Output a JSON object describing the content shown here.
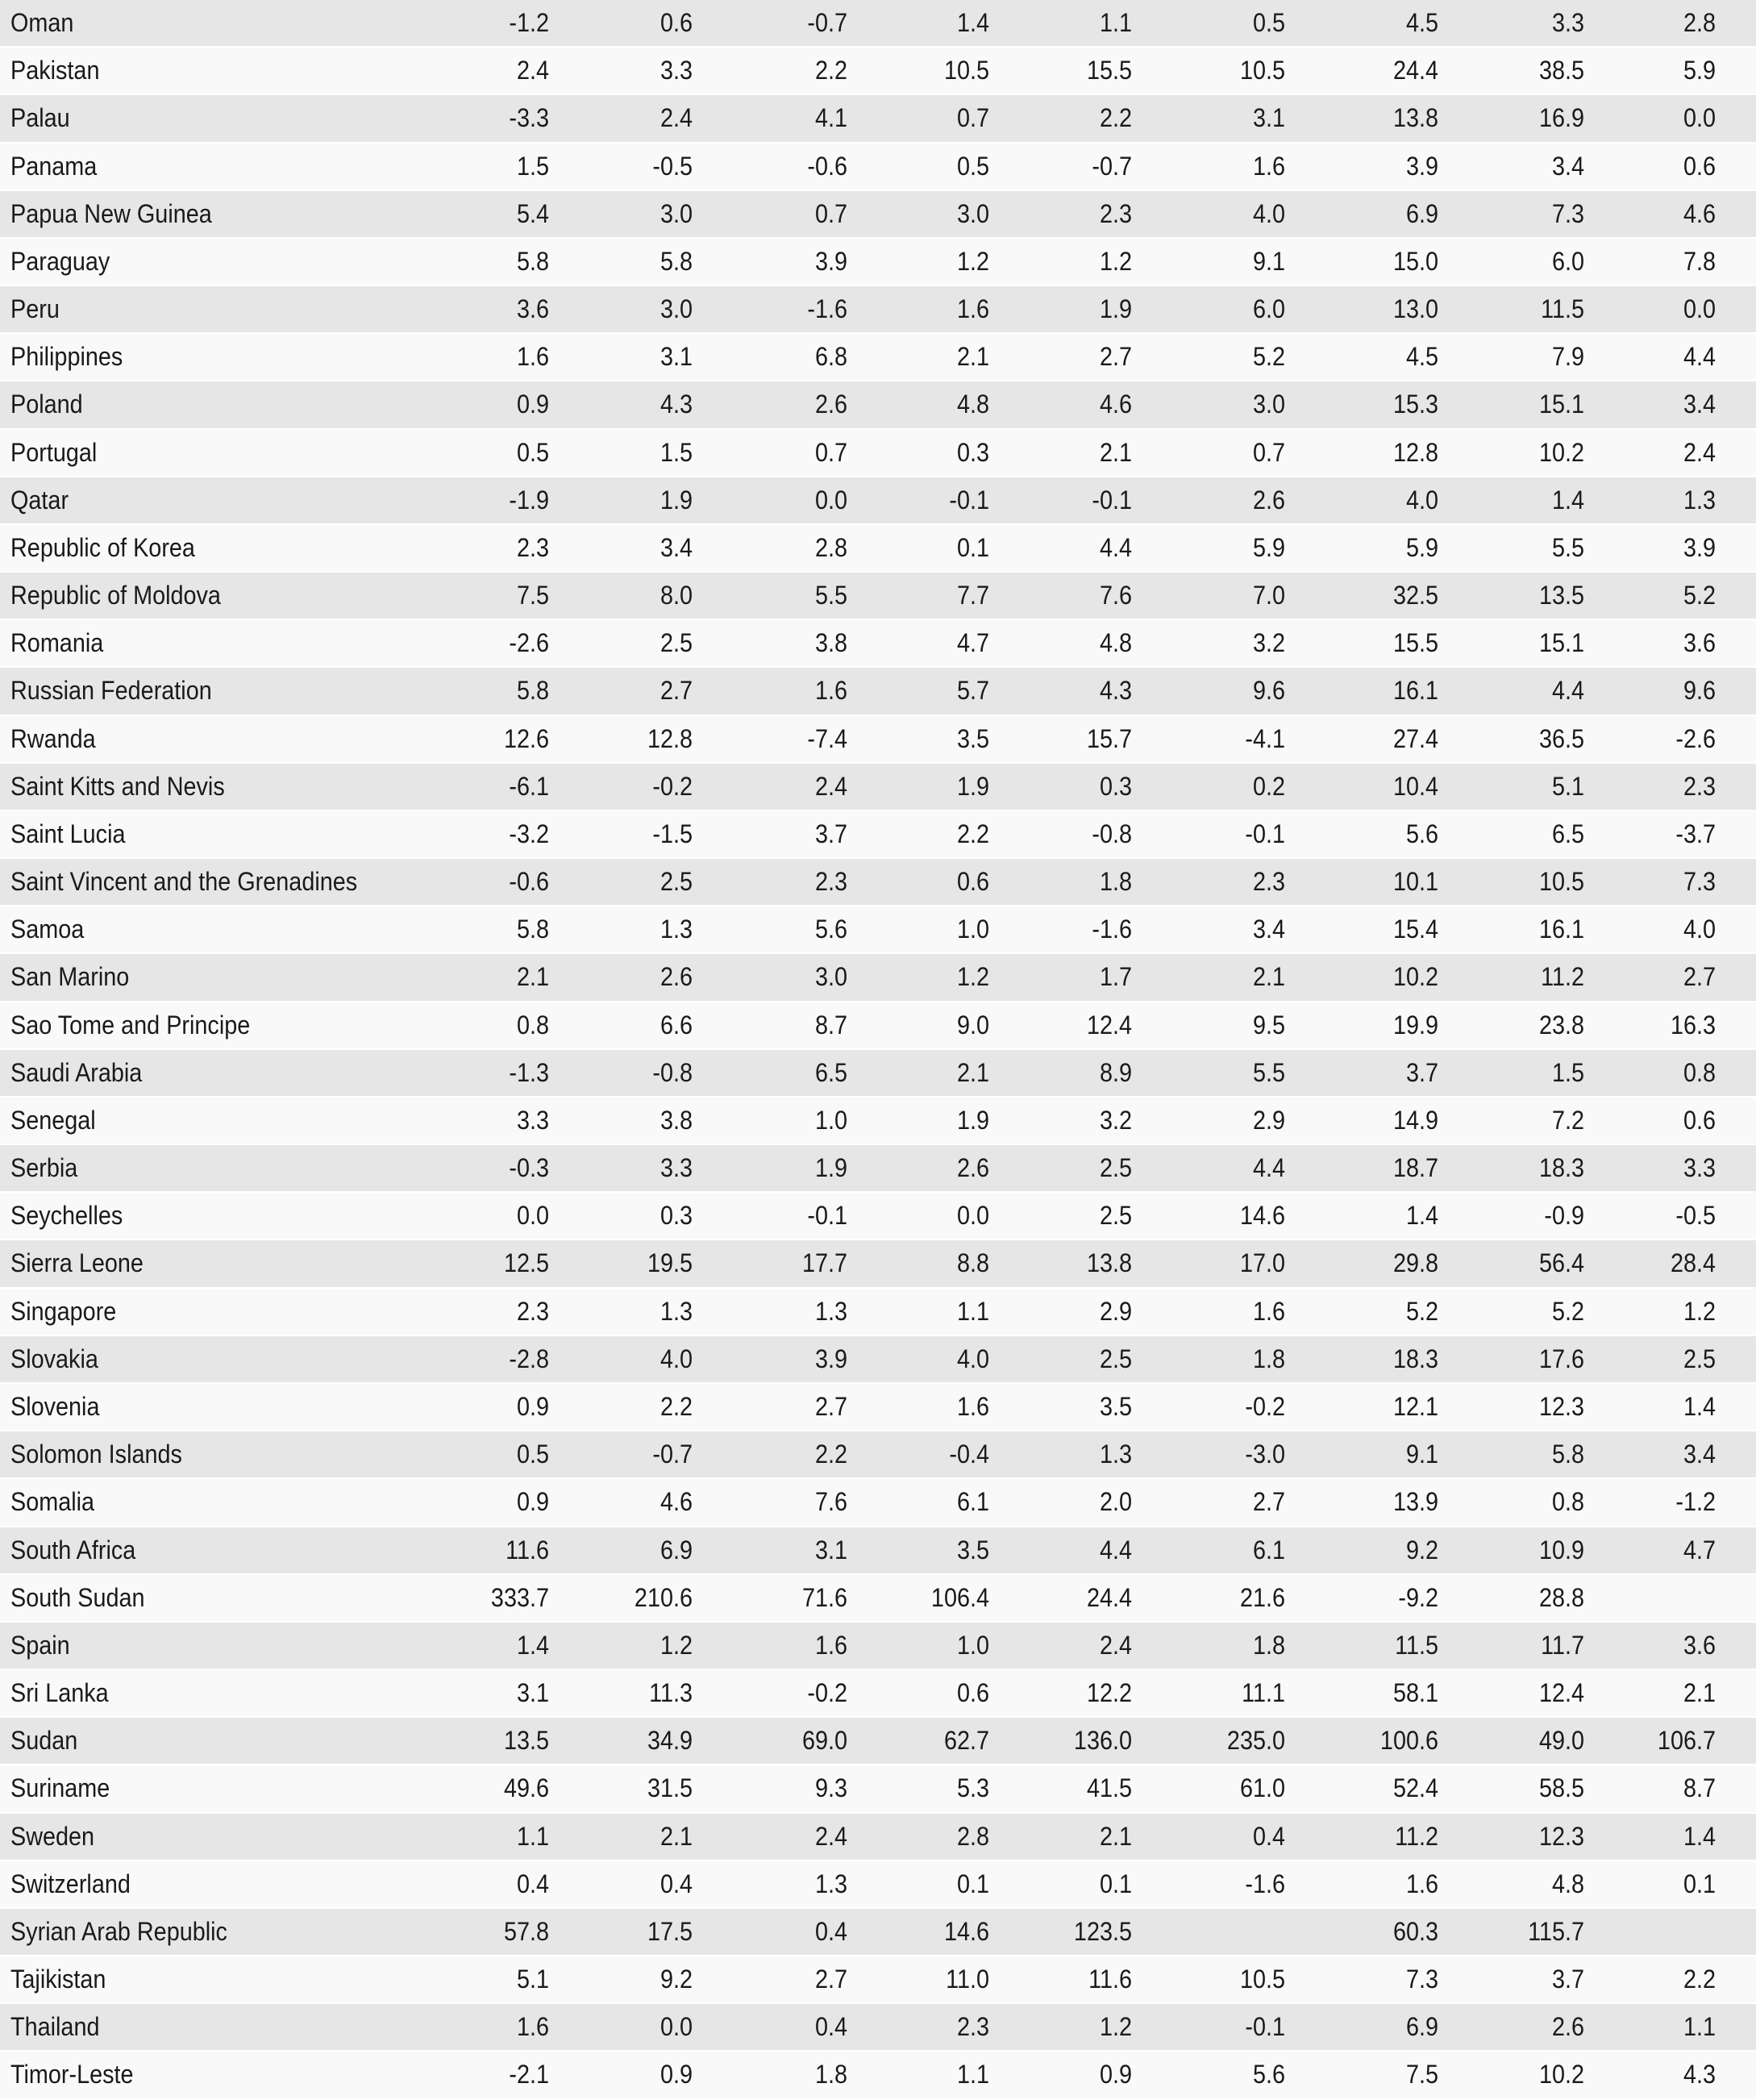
{
  "rows": [
    {
      "country": "Oman",
      "values": [
        "-1.2",
        "0.6",
        "-0.7",
        "1.4",
        "1.1",
        "0.5",
        "4.5",
        "3.3",
        "2.8"
      ]
    },
    {
      "country": "Pakistan",
      "values": [
        "2.4",
        "3.3",
        "2.2",
        "10.5",
        "15.5",
        "10.5",
        "24.4",
        "38.5",
        "5.9"
      ]
    },
    {
      "country": "Palau",
      "values": [
        "-3.3",
        "2.4",
        "4.1",
        "0.7",
        "2.2",
        "3.1",
        "13.8",
        "16.9",
        "0.0"
      ]
    },
    {
      "country": "Panama",
      "values": [
        "1.5",
        "-0.5",
        "-0.6",
        "0.5",
        "-0.7",
        "1.6",
        "3.9",
        "3.4",
        "0.6"
      ]
    },
    {
      "country": "Papua New Guinea",
      "values": [
        "5.4",
        "3.0",
        "0.7",
        "3.0",
        "2.3",
        "4.0",
        "6.9",
        "7.3",
        "4.6"
      ]
    },
    {
      "country": "Paraguay",
      "values": [
        "5.8",
        "5.8",
        "3.9",
        "1.2",
        "1.2",
        "9.1",
        "15.0",
        "6.0",
        "7.8"
      ]
    },
    {
      "country": "Peru",
      "values": [
        "3.6",
        "3.0",
        "-1.6",
        "1.6",
        "1.9",
        "6.0",
        "13.0",
        "11.5",
        "0.0"
      ]
    },
    {
      "country": "Philippines",
      "values": [
        "1.6",
        "3.1",
        "6.8",
        "2.1",
        "2.7",
        "5.2",
        "4.5",
        "7.9",
        "4.4"
      ]
    },
    {
      "country": "Poland",
      "values": [
        "0.9",
        "4.3",
        "2.6",
        "4.8",
        "4.6",
        "3.0",
        "15.3",
        "15.1",
        "3.4"
      ]
    },
    {
      "country": "Portugal",
      "values": [
        "0.5",
        "1.5",
        "0.7",
        "0.3",
        "2.1",
        "0.7",
        "12.8",
        "10.2",
        "2.4"
      ]
    },
    {
      "country": "Qatar",
      "values": [
        "-1.9",
        "1.9",
        "0.0",
        "-0.1",
        "-0.1",
        "2.6",
        "4.0",
        "1.4",
        "1.3"
      ]
    },
    {
      "country": "Republic of Korea",
      "values": [
        "2.3",
        "3.4",
        "2.8",
        "0.1",
        "4.4",
        "5.9",
        "5.9",
        "5.5",
        "3.9"
      ]
    },
    {
      "country": "Republic of Moldova",
      "values": [
        "7.5",
        "8.0",
        "5.5",
        "7.7",
        "7.6",
        "7.0",
        "32.5",
        "13.5",
        "5.2"
      ]
    },
    {
      "country": "Romania",
      "values": [
        "-2.6",
        "2.5",
        "3.8",
        "4.7",
        "4.8",
        "3.2",
        "15.5",
        "15.1",
        "3.6"
      ]
    },
    {
      "country": "Russian Federation",
      "values": [
        "5.8",
        "2.7",
        "1.6",
        "5.7",
        "4.3",
        "9.6",
        "16.1",
        "4.4",
        "9.6"
      ]
    },
    {
      "country": "Rwanda",
      "values": [
        "12.6",
        "12.8",
        "-7.4",
        "3.5",
        "15.7",
        "-4.1",
        "27.4",
        "36.5",
        "-2.6"
      ]
    },
    {
      "country": "Saint Kitts and Nevis",
      "values": [
        "-6.1",
        "-0.2",
        "2.4",
        "1.9",
        "0.3",
        "0.2",
        "10.4",
        "5.1",
        "2.3"
      ]
    },
    {
      "country": "Saint Lucia",
      "values": [
        "-3.2",
        "-1.5",
        "3.7",
        "2.2",
        "-0.8",
        "-0.1",
        "5.6",
        "6.5",
        "-3.7"
      ]
    },
    {
      "country": "Saint Vincent and the Grenadines",
      "values": [
        "-0.6",
        "2.5",
        "2.3",
        "0.6",
        "1.8",
        "2.3",
        "10.1",
        "10.5",
        "7.3"
      ]
    },
    {
      "country": "Samoa",
      "values": [
        "5.8",
        "1.3",
        "5.6",
        "1.0",
        "-1.6",
        "3.4",
        "15.4",
        "16.1",
        "4.0"
      ]
    },
    {
      "country": "San Marino",
      "values": [
        "2.1",
        "2.6",
        "3.0",
        "1.2",
        "1.7",
        "2.1",
        "10.2",
        "11.2",
        "2.7"
      ]
    },
    {
      "country": "Sao Tome and Principe",
      "values": [
        "0.8",
        "6.6",
        "8.7",
        "9.0",
        "12.4",
        "9.5",
        "19.9",
        "23.8",
        "16.3"
      ]
    },
    {
      "country": "Saudi Arabia",
      "values": [
        "-1.3",
        "-0.8",
        "6.5",
        "2.1",
        "8.9",
        "5.5",
        "3.7",
        "1.5",
        "0.8"
      ]
    },
    {
      "country": "Senegal",
      "values": [
        "3.3",
        "3.8",
        "1.0",
        "1.9",
        "3.2",
        "2.9",
        "14.9",
        "7.2",
        "0.6"
      ]
    },
    {
      "country": "Serbia",
      "values": [
        "-0.3",
        "3.3",
        "1.9",
        "2.6",
        "2.5",
        "4.4",
        "18.7",
        "18.3",
        "3.3"
      ]
    },
    {
      "country": "Seychelles",
      "values": [
        "0.0",
        "0.3",
        "-0.1",
        "0.0",
        "2.5",
        "14.6",
        "1.4",
        "-0.9",
        "-0.5"
      ]
    },
    {
      "country": "Sierra Leone",
      "values": [
        "12.5",
        "19.5",
        "17.7",
        "8.8",
        "13.8",
        "17.0",
        "29.8",
        "56.4",
        "28.4"
      ]
    },
    {
      "country": "Singapore",
      "values": [
        "2.3",
        "1.3",
        "1.3",
        "1.1",
        "2.9",
        "1.6",
        "5.2",
        "5.2",
        "1.2"
      ]
    },
    {
      "country": "Slovakia",
      "values": [
        "-2.8",
        "4.0",
        "3.9",
        "4.0",
        "2.5",
        "1.8",
        "18.3",
        "17.6",
        "2.5"
      ]
    },
    {
      "country": "Slovenia",
      "values": [
        "0.9",
        "2.2",
        "2.7",
        "1.6",
        "3.5",
        "-0.2",
        "12.1",
        "12.3",
        "1.4"
      ]
    },
    {
      "country": "Solomon Islands",
      "values": [
        "0.5",
        "-0.7",
        "2.2",
        "-0.4",
        "1.3",
        "-3.0",
        "9.1",
        "5.8",
        "3.4"
      ]
    },
    {
      "country": "Somalia",
      "values": [
        "0.9",
        "4.6",
        "7.6",
        "6.1",
        "2.0",
        "2.7",
        "13.9",
        "0.8",
        "-1.2"
      ]
    },
    {
      "country": "South Africa",
      "values": [
        "11.6",
        "6.9",
        "3.1",
        "3.5",
        "4.4",
        "6.1",
        "9.2",
        "10.9",
        "4.7"
      ]
    },
    {
      "country": "South Sudan",
      "values": [
        "333.7",
        "210.6",
        "71.6",
        "106.4",
        "24.4",
        "21.6",
        "-9.2",
        "28.8",
        ""
      ]
    },
    {
      "country": "Spain",
      "values": [
        "1.4",
        "1.2",
        "1.6",
        "1.0",
        "2.4",
        "1.8",
        "11.5",
        "11.7",
        "3.6"
      ]
    },
    {
      "country": "Sri Lanka",
      "values": [
        "3.1",
        "11.3",
        "-0.2",
        "0.6",
        "12.2",
        "11.1",
        "58.1",
        "12.4",
        "2.1"
      ]
    },
    {
      "country": "Sudan",
      "values": [
        "13.5",
        "34.9",
        "69.0",
        "62.7",
        "136.0",
        "235.0",
        "100.6",
        "49.0",
        "106.7"
      ]
    },
    {
      "country": "Suriname",
      "values": [
        "49.6",
        "31.5",
        "9.3",
        "5.3",
        "41.5",
        "61.0",
        "52.4",
        "58.5",
        "8.7"
      ]
    },
    {
      "country": "Sweden",
      "values": [
        "1.1",
        "2.1",
        "2.4",
        "2.8",
        "2.1",
        "0.4",
        "11.2",
        "12.3",
        "1.4"
      ]
    },
    {
      "country": "Switzerland",
      "values": [
        "0.4",
        "0.4",
        "1.3",
        "0.1",
        "0.1",
        "-1.6",
        "1.6",
        "4.8",
        "0.1"
      ]
    },
    {
      "country": "Syrian Arab Republic",
      "values": [
        "57.8",
        "17.5",
        "0.4",
        "14.6",
        "123.5",
        "",
        "60.3",
        "115.7",
        ""
      ]
    },
    {
      "country": "Tajikistan",
      "values": [
        "5.1",
        "9.2",
        "2.7",
        "11.0",
        "11.6",
        "10.5",
        "7.3",
        "3.7",
        "2.2"
      ]
    },
    {
      "country": "Thailand",
      "values": [
        "1.6",
        "0.0",
        "0.4",
        "2.3",
        "1.2",
        "-0.1",
        "6.9",
        "2.6",
        "1.1"
      ]
    },
    {
      "country": "Timor-Leste",
      "values": [
        "-2.1",
        "0.9",
        "1.8",
        "1.1",
        "0.9",
        "5.6",
        "7.5",
        "10.2",
        "4.3"
      ]
    }
  ]
}
